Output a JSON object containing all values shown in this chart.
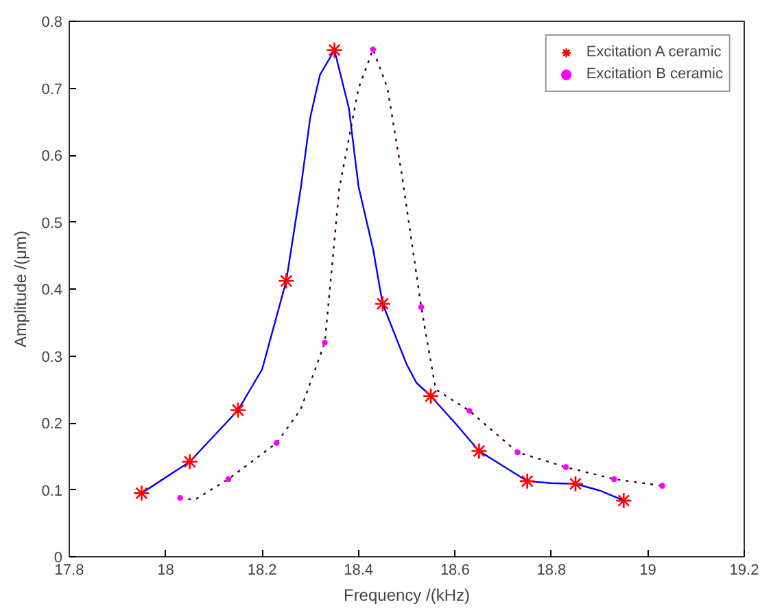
{
  "chart_data": {
    "type": "line",
    "xlabel": "Frequency /(kHz)",
    "ylabel": "Amplitude /(μm)",
    "xlim": [
      17.8,
      19.2
    ],
    "ylim": [
      0,
      0.8
    ],
    "xticks": [
      17.8,
      18,
      18.2,
      18.4,
      18.6,
      18.8,
      19,
      19.2
    ],
    "yticks": [
      0,
      0.1,
      0.2,
      0.3,
      0.4,
      0.5,
      0.6,
      0.7,
      0.8
    ],
    "grid": false,
    "legend": "top right",
    "series": [
      {
        "color": "#0000ff",
        "line_style": "solid",
        "marker": "none",
        "x": [
          17.95,
          18.05,
          18.15,
          18.2,
          18.25,
          18.28,
          18.3,
          18.32,
          18.35,
          18.38,
          18.4,
          18.43,
          18.45,
          18.5,
          18.52,
          18.55,
          18.6,
          18.65,
          18.75,
          18.8,
          18.85,
          18.9,
          18.95
        ],
        "values": [
          0.095,
          0.142,
          0.219,
          0.28,
          0.412,
          0.55,
          0.657,
          0.72,
          0.757,
          0.67,
          0.553,
          0.46,
          0.378,
          0.287,
          0.26,
          0.24,
          0.2,
          0.158,
          0.113,
          0.11,
          0.109,
          0.099,
          0.084
        ]
      },
      {
        "color": "#3a0020",
        "line_style": "dotted",
        "marker": "none",
        "x": [
          18.03,
          18.06,
          18.13,
          18.23,
          18.28,
          18.33,
          18.36,
          18.4,
          18.43,
          18.46,
          18.49,
          18.53,
          18.56,
          18.63,
          18.73,
          18.83,
          18.93,
          19.03
        ],
        "values": [
          0.088,
          0.085,
          0.116,
          0.17,
          0.22,
          0.32,
          0.55,
          0.7,
          0.758,
          0.7,
          0.57,
          0.373,
          0.25,
          0.218,
          0.156,
          0.134,
          0.116,
          0.106
        ]
      },
      {
        "type": "scatter",
        "name": "Excitation A ceramic",
        "color": "#ff0000",
        "marker": "cross",
        "x": [
          17.95,
          18.05,
          18.15,
          18.25,
          18.35,
          18.45,
          18.55,
          18.65,
          18.75,
          18.85,
          18.95
        ],
        "values": [
          0.095,
          0.142,
          0.219,
          0.412,
          0.757,
          0.378,
          0.24,
          0.158,
          0.113,
          0.109,
          0.084
        ]
      },
      {
        "type": "scatter",
        "name": "Excitation B ceramic",
        "color": "#ff00ff",
        "marker": "circle",
        "x": [
          18.03,
          18.13,
          18.23,
          18.33,
          18.43,
          18.53,
          18.63,
          18.73,
          18.83,
          18.93,
          19.03
        ],
        "values": [
          0.088,
          0.116,
          0.17,
          0.32,
          0.758,
          0.373,
          0.218,
          0.156,
          0.134,
          0.116,
          0.106
        ]
      }
    ]
  }
}
